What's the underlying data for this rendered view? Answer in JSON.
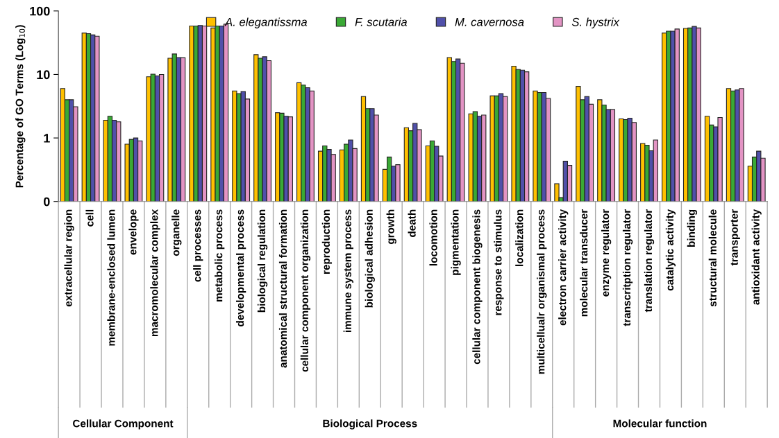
{
  "chart_data": {
    "type": "bar",
    "ylabel": "Percentage of GO Terms (Log$_{10}$)",
    "categories": [
      "extracellular region",
      "cell",
      "membrane-enclosed lumen",
      "envelope",
      "macromolecular complex",
      "organelle",
      "cell processes",
      "metabolic process",
      "developmental process",
      "biological regulation",
      "anatomical structural formation",
      "cellular component organization",
      "reproduction",
      "immune system process",
      "biological adhesion",
      "growth",
      "death",
      "locomotion",
      "pigmentation",
      "cellular component biogenesis",
      "response to stimulus",
      "localization",
      "multicellualr organismal process",
      "electron carrier activity",
      "molecular transducer",
      "enzyme regulator",
      "transcritption regulator",
      "translation regulator",
      "catalytic activity",
      "binding",
      "structural molecule",
      "transporter",
      "antioxidant activity"
    ],
    "series": [
      {
        "name": "A. elegantissma",
        "color": "#ffc000",
        "values": [
          6,
          45,
          1.9,
          0.8,
          9.2,
          18,
          58,
          54,
          5.5,
          20.5,
          2.5,
          7.4,
          0.62,
          0.65,
          4.5,
          0.32,
          1.45,
          0.75,
          18.5,
          2.4,
          4.6,
          13.5,
          5.5,
          0.19,
          6.5,
          4,
          2,
          0.82,
          45,
          53,
          2.2,
          6,
          0.36
        ]
      },
      {
        "name": "F. scutaria",
        "color": "#3aa935",
        "values": [
          4,
          44,
          2.2,
          0.95,
          10.1,
          21,
          58,
          58,
          5,
          18,
          2.45,
          6.8,
          0.75,
          0.8,
          2.9,
          0.5,
          1.3,
          0.9,
          16,
          2.6,
          4.6,
          12,
          5.2,
          0.115,
          4,
          3.3,
          1.95,
          0.77,
          48,
          54,
          1.6,
          5.5,
          0.5
        ]
      },
      {
        "name": "M. cavernosa",
        "color": "#5050aa",
        "values": [
          4,
          42,
          1.9,
          1,
          9.5,
          18.5,
          59,
          58,
          5.4,
          19,
          2.2,
          6.2,
          0.66,
          0.93,
          2.9,
          0.36,
          1.7,
          0.74,
          17.5,
          2.2,
          5,
          11.7,
          5.2,
          0.43,
          4.5,
          2.8,
          2.05,
          0.63,
          48,
          57,
          1.5,
          5.7,
          0.62
        ]
      },
      {
        "name": "S. hystrix",
        "color": "#e394c4",
        "values": [
          3.1,
          40,
          1.8,
          0.9,
          10,
          18.3,
          58,
          62,
          4.1,
          16.5,
          2.15,
          5.5,
          0.55,
          0.68,
          2.3,
          0.38,
          1.35,
          0.52,
          15,
          2.3,
          4.5,
          11,
          4.2,
          0.37,
          3.4,
          2.8,
          1.75,
          0.93,
          52,
          54,
          2.1,
          6,
          0.48
        ]
      }
    ],
    "log": true,
    "ylim": [
      0.1,
      100
    ],
    "yticks": [
      {
        "value": 0.1,
        "label": "0"
      },
      1,
      10,
      100
    ],
    "legend": "top",
    "grid": false,
    "annotations": [
      "Cellular Component",
      "Biological Process",
      "Molecular function"
    ]
  }
}
